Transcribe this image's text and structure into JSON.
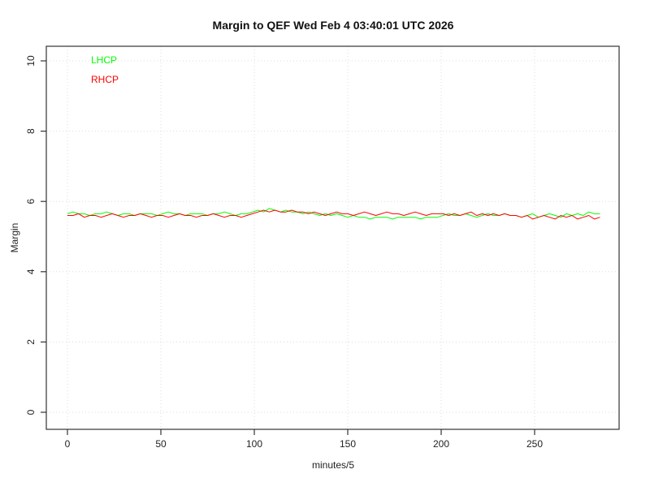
{
  "window": {
    "background": "#ffffff"
  },
  "chart_data": {
    "type": "line",
    "title": "Margin to QEF Wed Feb 4 03:40:01 UTC 2026",
    "xlabel": "minutes/5",
    "ylabel": "Margin",
    "xlim": [
      0,
      290
    ],
    "ylim": [
      0,
      10
    ],
    "xticks": [
      0,
      50,
      100,
      150,
      200,
      250
    ],
    "yticks": [
      0,
      2,
      4,
      6,
      8,
      10
    ],
    "grid": "dotted-lightgray",
    "legend_position": "top-left-inside",
    "colors": {
      "lhcp": "#00ff00",
      "rhcp": "#ff0000",
      "grid": "#dcdcdc",
      "box": "#333333",
      "text": "#222222"
    },
    "legend": [
      {
        "label": "LHCP",
        "color": "#00ff00"
      },
      {
        "label": "RHCP",
        "color": "#ff0000"
      }
    ],
    "x": [
      0,
      3,
      6,
      9,
      12,
      15,
      18,
      21,
      24,
      27,
      30,
      33,
      36,
      39,
      42,
      45,
      48,
      51,
      54,
      57,
      60,
      63,
      66,
      69,
      72,
      75,
      78,
      81,
      84,
      87,
      90,
      93,
      96,
      99,
      102,
      105,
      108,
      111,
      114,
      117,
      120,
      123,
      126,
      129,
      132,
      135,
      138,
      141,
      144,
      147,
      150,
      153,
      156,
      159,
      162,
      165,
      168,
      171,
      174,
      177,
      180,
      183,
      186,
      189,
      192,
      195,
      198,
      201,
      204,
      207,
      210,
      213,
      216,
      219,
      222,
      225,
      228,
      231,
      234,
      237,
      240,
      243,
      246,
      249,
      252,
      255,
      258,
      261,
      264,
      267,
      270,
      273,
      276,
      279,
      282,
      285
    ],
    "series": [
      {
        "name": "LHCP",
        "values": [
          5.65,
          5.7,
          5.65,
          5.65,
          5.6,
          5.65,
          5.65,
          5.7,
          5.65,
          5.6,
          5.65,
          5.65,
          5.6,
          5.65,
          5.65,
          5.65,
          5.6,
          5.65,
          5.7,
          5.65,
          5.65,
          5.6,
          5.65,
          5.65,
          5.65,
          5.6,
          5.65,
          5.65,
          5.7,
          5.65,
          5.6,
          5.65,
          5.65,
          5.7,
          5.75,
          5.7,
          5.8,
          5.75,
          5.7,
          5.75,
          5.7,
          5.7,
          5.65,
          5.7,
          5.65,
          5.6,
          5.65,
          5.6,
          5.65,
          5.6,
          5.55,
          5.6,
          5.55,
          5.55,
          5.5,
          5.55,
          5.55,
          5.55,
          5.5,
          5.55,
          5.55,
          5.55,
          5.55,
          5.5,
          5.55,
          5.55,
          5.55,
          5.6,
          5.65,
          5.6,
          5.6,
          5.65,
          5.6,
          5.55,
          5.6,
          5.65,
          5.6,
          5.6,
          5.65,
          5.6,
          5.6,
          5.55,
          5.6,
          5.65,
          5.55,
          5.6,
          5.65,
          5.6,
          5.55,
          5.65,
          5.6,
          5.65,
          5.6,
          5.7,
          5.65,
          5.65
        ]
      },
      {
        "name": "RHCP",
        "values": [
          5.6,
          5.6,
          5.65,
          5.55,
          5.6,
          5.6,
          5.55,
          5.6,
          5.65,
          5.6,
          5.55,
          5.6,
          5.6,
          5.65,
          5.6,
          5.55,
          5.6,
          5.6,
          5.55,
          5.6,
          5.65,
          5.6,
          5.6,
          5.55,
          5.6,
          5.6,
          5.65,
          5.6,
          5.55,
          5.6,
          5.6,
          5.55,
          5.6,
          5.65,
          5.7,
          5.75,
          5.7,
          5.75,
          5.7,
          5.7,
          5.75,
          5.7,
          5.7,
          5.65,
          5.7,
          5.65,
          5.6,
          5.65,
          5.7,
          5.65,
          5.65,
          5.6,
          5.65,
          5.7,
          5.65,
          5.6,
          5.65,
          5.7,
          5.65,
          5.65,
          5.6,
          5.65,
          5.7,
          5.65,
          5.6,
          5.65,
          5.65,
          5.65,
          5.6,
          5.65,
          5.6,
          5.65,
          5.7,
          5.6,
          5.65,
          5.6,
          5.65,
          5.6,
          5.65,
          5.6,
          5.6,
          5.55,
          5.6,
          5.5,
          5.55,
          5.6,
          5.55,
          5.5,
          5.6,
          5.55,
          5.6,
          5.5,
          5.55,
          5.6,
          5.5,
          5.55
        ]
      }
    ]
  }
}
